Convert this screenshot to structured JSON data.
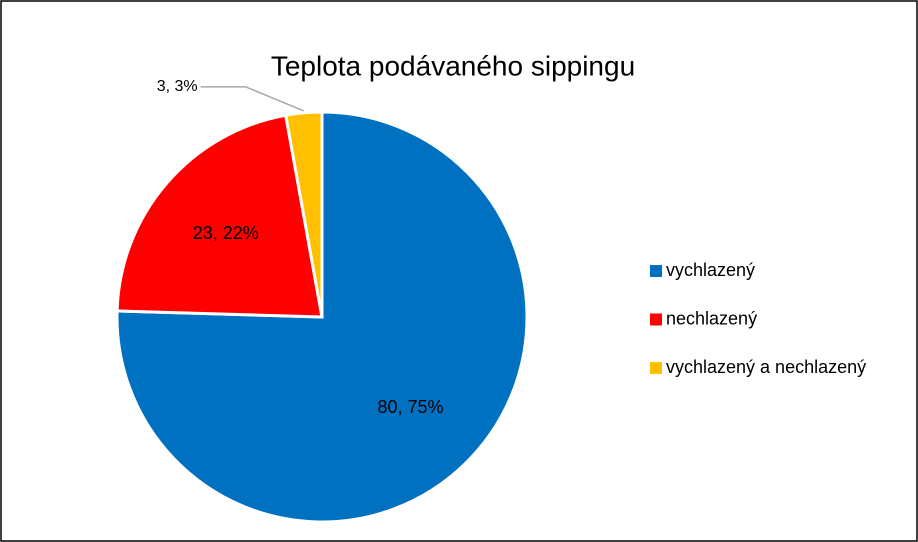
{
  "chart_data": {
    "type": "pie",
    "title": "Teplota podávaného sippingu",
    "categories": [
      "vychlazený",
      "nechlazený",
      "vychlazený a nechlazený"
    ],
    "values": [
      80,
      23,
      3
    ],
    "value_labels": [
      "80, 75%",
      "23, 22%",
      "3, 3%"
    ],
    "colors": [
      "#0070c0",
      "#ff0000",
      "#ffc000"
    ],
    "legend": "right"
  }
}
